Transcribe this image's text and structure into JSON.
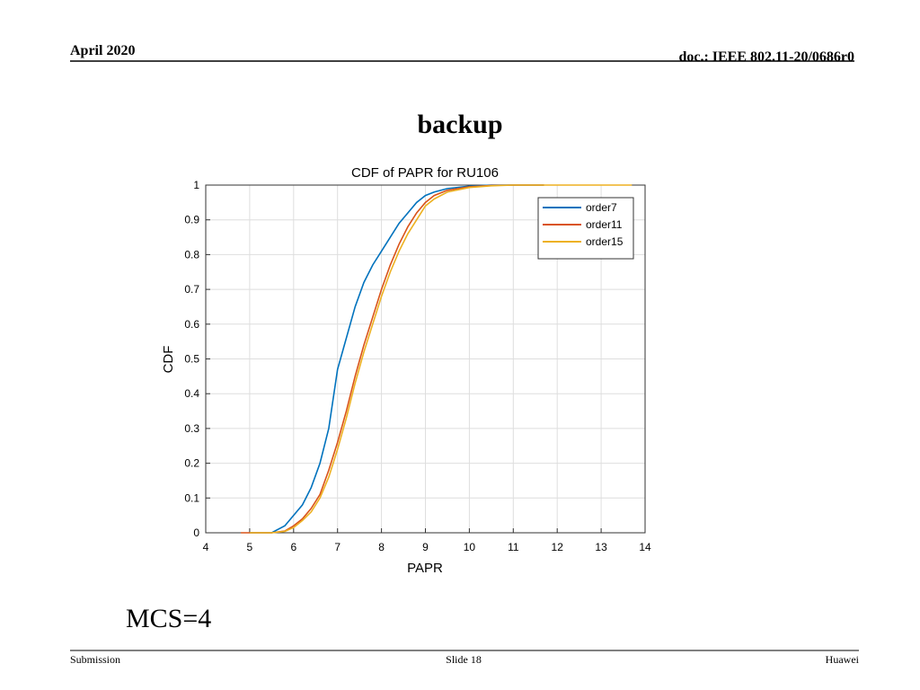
{
  "header": {
    "date": "April 2020",
    "doc": "doc.: IEEE 802.11-20/0686r0"
  },
  "slide_title": "backup",
  "chart_data": {
    "type": "line",
    "title": "CDF of PAPR for RU106",
    "x_label": "PAPR",
    "y_label": "CDF",
    "x": [
      4.8,
      5.0,
      5.5,
      5.8,
      6.0,
      6.2,
      6.4,
      6.6,
      6.8,
      7.0,
      7.2,
      7.4,
      7.6,
      7.8,
      8.0,
      8.2,
      8.4,
      8.6,
      8.8,
      9.0,
      9.2,
      9.5,
      10,
      10.5,
      11,
      11.7,
      13.7
    ],
    "series": [
      {
        "name": "order7",
        "color": "#0072bd",
        "values": [
          null,
          0,
          0,
          0.02,
          0.05,
          0.08,
          0.13,
          0.2,
          0.3,
          0.47,
          0.56,
          0.65,
          0.72,
          0.77,
          0.81,
          0.85,
          0.89,
          0.92,
          0.95,
          0.97,
          0.98,
          0.99,
          0.997,
          1,
          1,
          1,
          null
        ]
      },
      {
        "name": "order11",
        "color": "#d95319",
        "values": [
          0,
          0,
          0,
          0.005,
          0.02,
          0.04,
          0.07,
          0.11,
          0.18,
          0.26,
          0.35,
          0.45,
          0.54,
          0.62,
          0.7,
          0.77,
          0.83,
          0.88,
          0.92,
          0.95,
          0.97,
          0.985,
          0.995,
          0.999,
          1,
          1,
          null
        ]
      },
      {
        "name": "order15",
        "color": "#edb120",
        "values": [
          null,
          0,
          0,
          0.004,
          0.015,
          0.035,
          0.06,
          0.1,
          0.16,
          0.24,
          0.33,
          0.43,
          0.52,
          0.6,
          0.68,
          0.75,
          0.81,
          0.86,
          0.9,
          0.94,
          0.96,
          0.98,
          0.993,
          0.998,
          1,
          1,
          1
        ]
      }
    ],
    "xlim": [
      4,
      14
    ],
    "xticks": [
      4,
      5,
      6,
      7,
      8,
      9,
      10,
      11,
      12,
      13,
      14
    ],
    "ylim": [
      0,
      1
    ],
    "yticks": [
      0,
      0.1,
      0.2,
      0.3,
      0.4,
      0.5,
      0.6,
      0.7,
      0.8,
      0.9,
      1
    ],
    "grid": true,
    "legend": "top-right"
  },
  "caption": "MCS=4",
  "footer": {
    "left": "Submission",
    "center": "Slide 18",
    "right": "Huawei"
  }
}
